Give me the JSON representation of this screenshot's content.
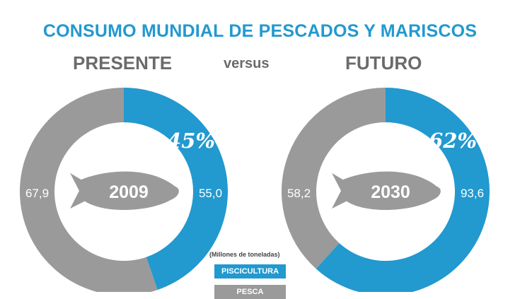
{
  "header": {
    "title": "CONSUMO MUNDIAL DE PESCADOS Y MARISCOS",
    "left_label": "PRESENTE",
    "middle_label": "versus",
    "right_label": "FUTURO"
  },
  "colors": {
    "acuicultura": "#2299cf",
    "pesca": "#9a9a9a",
    "title": "#2299cf",
    "subtitle": "#6b6b6b"
  },
  "legend": {
    "units": "(Millones de toneladas)",
    "items": [
      {
        "label": "PISCICULTURA",
        "color": "#2299cf"
      },
      {
        "label": "PESCA",
        "color": "#9a9a9a"
      }
    ]
  },
  "chart_data": [
    {
      "type": "pie",
      "center_label": "2009",
      "percent_label": "45%",
      "slices": [
        {
          "category": "PISCICULTURA",
          "value": 55.0,
          "value_label": "55,0"
        },
        {
          "category": "PESCA",
          "value": 67.9,
          "value_label": "67,9"
        }
      ]
    },
    {
      "type": "pie",
      "center_label": "2030",
      "percent_label": "62%",
      "slices": [
        {
          "category": "PISCICULTURA",
          "value": 93.6,
          "value_label": "93,6"
        },
        {
          "category": "PESCA",
          "value": 58.2,
          "value_label": "58,2"
        }
      ]
    }
  ]
}
